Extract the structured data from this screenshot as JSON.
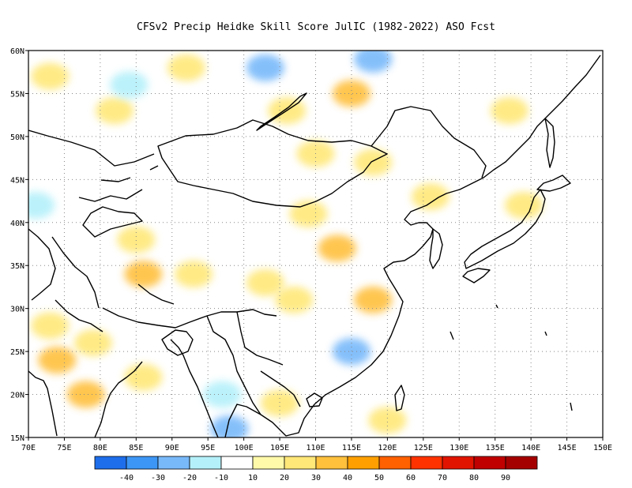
{
  "title": "CFSv2 Precip Heidke Skill Score JulIC (1982-2022) ASO Fcst",
  "map": {
    "lon_range": [
      70,
      150
    ],
    "lat_range": [
      15,
      60
    ],
    "lon_ticks": [
      {
        "value": 70,
        "label": "70E"
      },
      {
        "value": 75,
        "label": "75E"
      },
      {
        "value": 80,
        "label": "80E"
      },
      {
        "value": 85,
        "label": "85E"
      },
      {
        "value": 90,
        "label": "90E"
      },
      {
        "value": 95,
        "label": "95E"
      },
      {
        "value": 100,
        "label": "100E"
      },
      {
        "value": 105,
        "label": "105E"
      },
      {
        "value": 110,
        "label": "110E"
      },
      {
        "value": 115,
        "label": "115E"
      },
      {
        "value": 120,
        "label": "120E"
      },
      {
        "value": 125,
        "label": "125E"
      },
      {
        "value": 130,
        "label": "130E"
      },
      {
        "value": 135,
        "label": "135E"
      },
      {
        "value": 140,
        "label": "140E"
      },
      {
        "value": 145,
        "label": "145E"
      },
      {
        "value": 150,
        "label": "150E"
      }
    ],
    "lat_ticks": [
      {
        "value": 15,
        "label": "15N"
      },
      {
        "value": 20,
        "label": "20N"
      },
      {
        "value": 25,
        "label": "25N"
      },
      {
        "value": 30,
        "label": "30N"
      },
      {
        "value": 35,
        "label": "35N"
      },
      {
        "value": 40,
        "label": "40N"
      },
      {
        "value": 45,
        "label": "45N"
      },
      {
        "value": 50,
        "label": "50N"
      },
      {
        "value": 55,
        "label": "55N"
      },
      {
        "value": 60,
        "label": "60N"
      }
    ],
    "grid": "dotted"
  },
  "colorbar": {
    "colors": [
      "#1e6eeb",
      "#3c96f5",
      "#78b9fa",
      "#b4f0fa",
      "#ffffff",
      "#fffaaa",
      "#ffe878",
      "#ffc03c",
      "#ffa000",
      "#ff6000",
      "#ff3200",
      "#e11400",
      "#c00000",
      "#a50000"
    ],
    "labels": [
      "-40",
      "-30",
      "-20",
      "-10",
      "10",
      "20",
      "30",
      "40",
      "50",
      "60",
      "70",
      "80",
      "90"
    ]
  },
  "chart_data": {
    "type": "heatmap",
    "title": "CFSv2 Precip Heidke Skill Score JulIC (1982-2022) ASO Fcst",
    "x_ticks": [
      "70E",
      "75E",
      "80E",
      "85E",
      "90E",
      "95E",
      "100E",
      "105E",
      "110E",
      "115E",
      "120E",
      "125E",
      "130E",
      "135E",
      "140E",
      "145E",
      "150E"
    ],
    "y_ticks": [
      "15N",
      "20N",
      "25N",
      "30N",
      "35N",
      "40N",
      "45N",
      "50N",
      "55N",
      "60N"
    ],
    "xlim": [
      70,
      150
    ],
    "ylim": [
      15,
      60
    ],
    "levels": [
      -40,
      -30,
      -20,
      -10,
      10,
      20,
      30,
      40,
      50,
      60,
      70,
      80,
      90
    ],
    "regions": [
      {
        "lon": 73,
        "lat": 57,
        "hss": 20
      },
      {
        "lon": 82,
        "lat": 53,
        "hss": 20
      },
      {
        "lon": 84,
        "lat": 56,
        "hss": -10
      },
      {
        "lon": 92,
        "lat": 58,
        "hss": 20
      },
      {
        "lon": 103,
        "lat": 58,
        "hss": -20
      },
      {
        "lon": 106,
        "lat": 53,
        "hss": 20
      },
      {
        "lon": 115,
        "lat": 55,
        "hss": 30
      },
      {
        "lon": 118,
        "lat": 59,
        "hss": -20
      },
      {
        "lon": 110,
        "lat": 48,
        "hss": 20
      },
      {
        "lon": 118,
        "lat": 47,
        "hss": 20
      },
      {
        "lon": 71,
        "lat": 42,
        "hss": -10
      },
      {
        "lon": 85,
        "lat": 38,
        "hss": 20
      },
      {
        "lon": 86,
        "lat": 34,
        "hss": 30
      },
      {
        "lon": 93,
        "lat": 34,
        "hss": 20
      },
      {
        "lon": 113,
        "lat": 37,
        "hss": 30
      },
      {
        "lon": 109,
        "lat": 41,
        "hss": 20
      },
      {
        "lon": 118,
        "lat": 31,
        "hss": 30
      },
      {
        "lon": 107,
        "lat": 31,
        "hss": 20
      },
      {
        "lon": 103,
        "lat": 33,
        "hss": 20
      },
      {
        "lon": 73,
        "lat": 28,
        "hss": 20
      },
      {
        "lon": 74,
        "lat": 24,
        "hss": 30
      },
      {
        "lon": 78,
        "lat": 20,
        "hss": 30
      },
      {
        "lon": 79,
        "lat": 26,
        "hss": 20
      },
      {
        "lon": 86,
        "lat": 22,
        "hss": 20
      },
      {
        "lon": 115,
        "lat": 25,
        "hss": -20
      },
      {
        "lon": 97,
        "lat": 20,
        "hss": -10
      },
      {
        "lon": 98,
        "lat": 16,
        "hss": -20
      },
      {
        "lon": 105,
        "lat": 19,
        "hss": 20
      },
      {
        "lon": 120,
        "lat": 17,
        "hss": 20
      },
      {
        "lon": 126,
        "lat": 43,
        "hss": 20
      },
      {
        "lon": 139,
        "lat": 42,
        "hss": 20
      },
      {
        "lon": 137,
        "lat": 53,
        "hss": 20
      }
    ]
  }
}
